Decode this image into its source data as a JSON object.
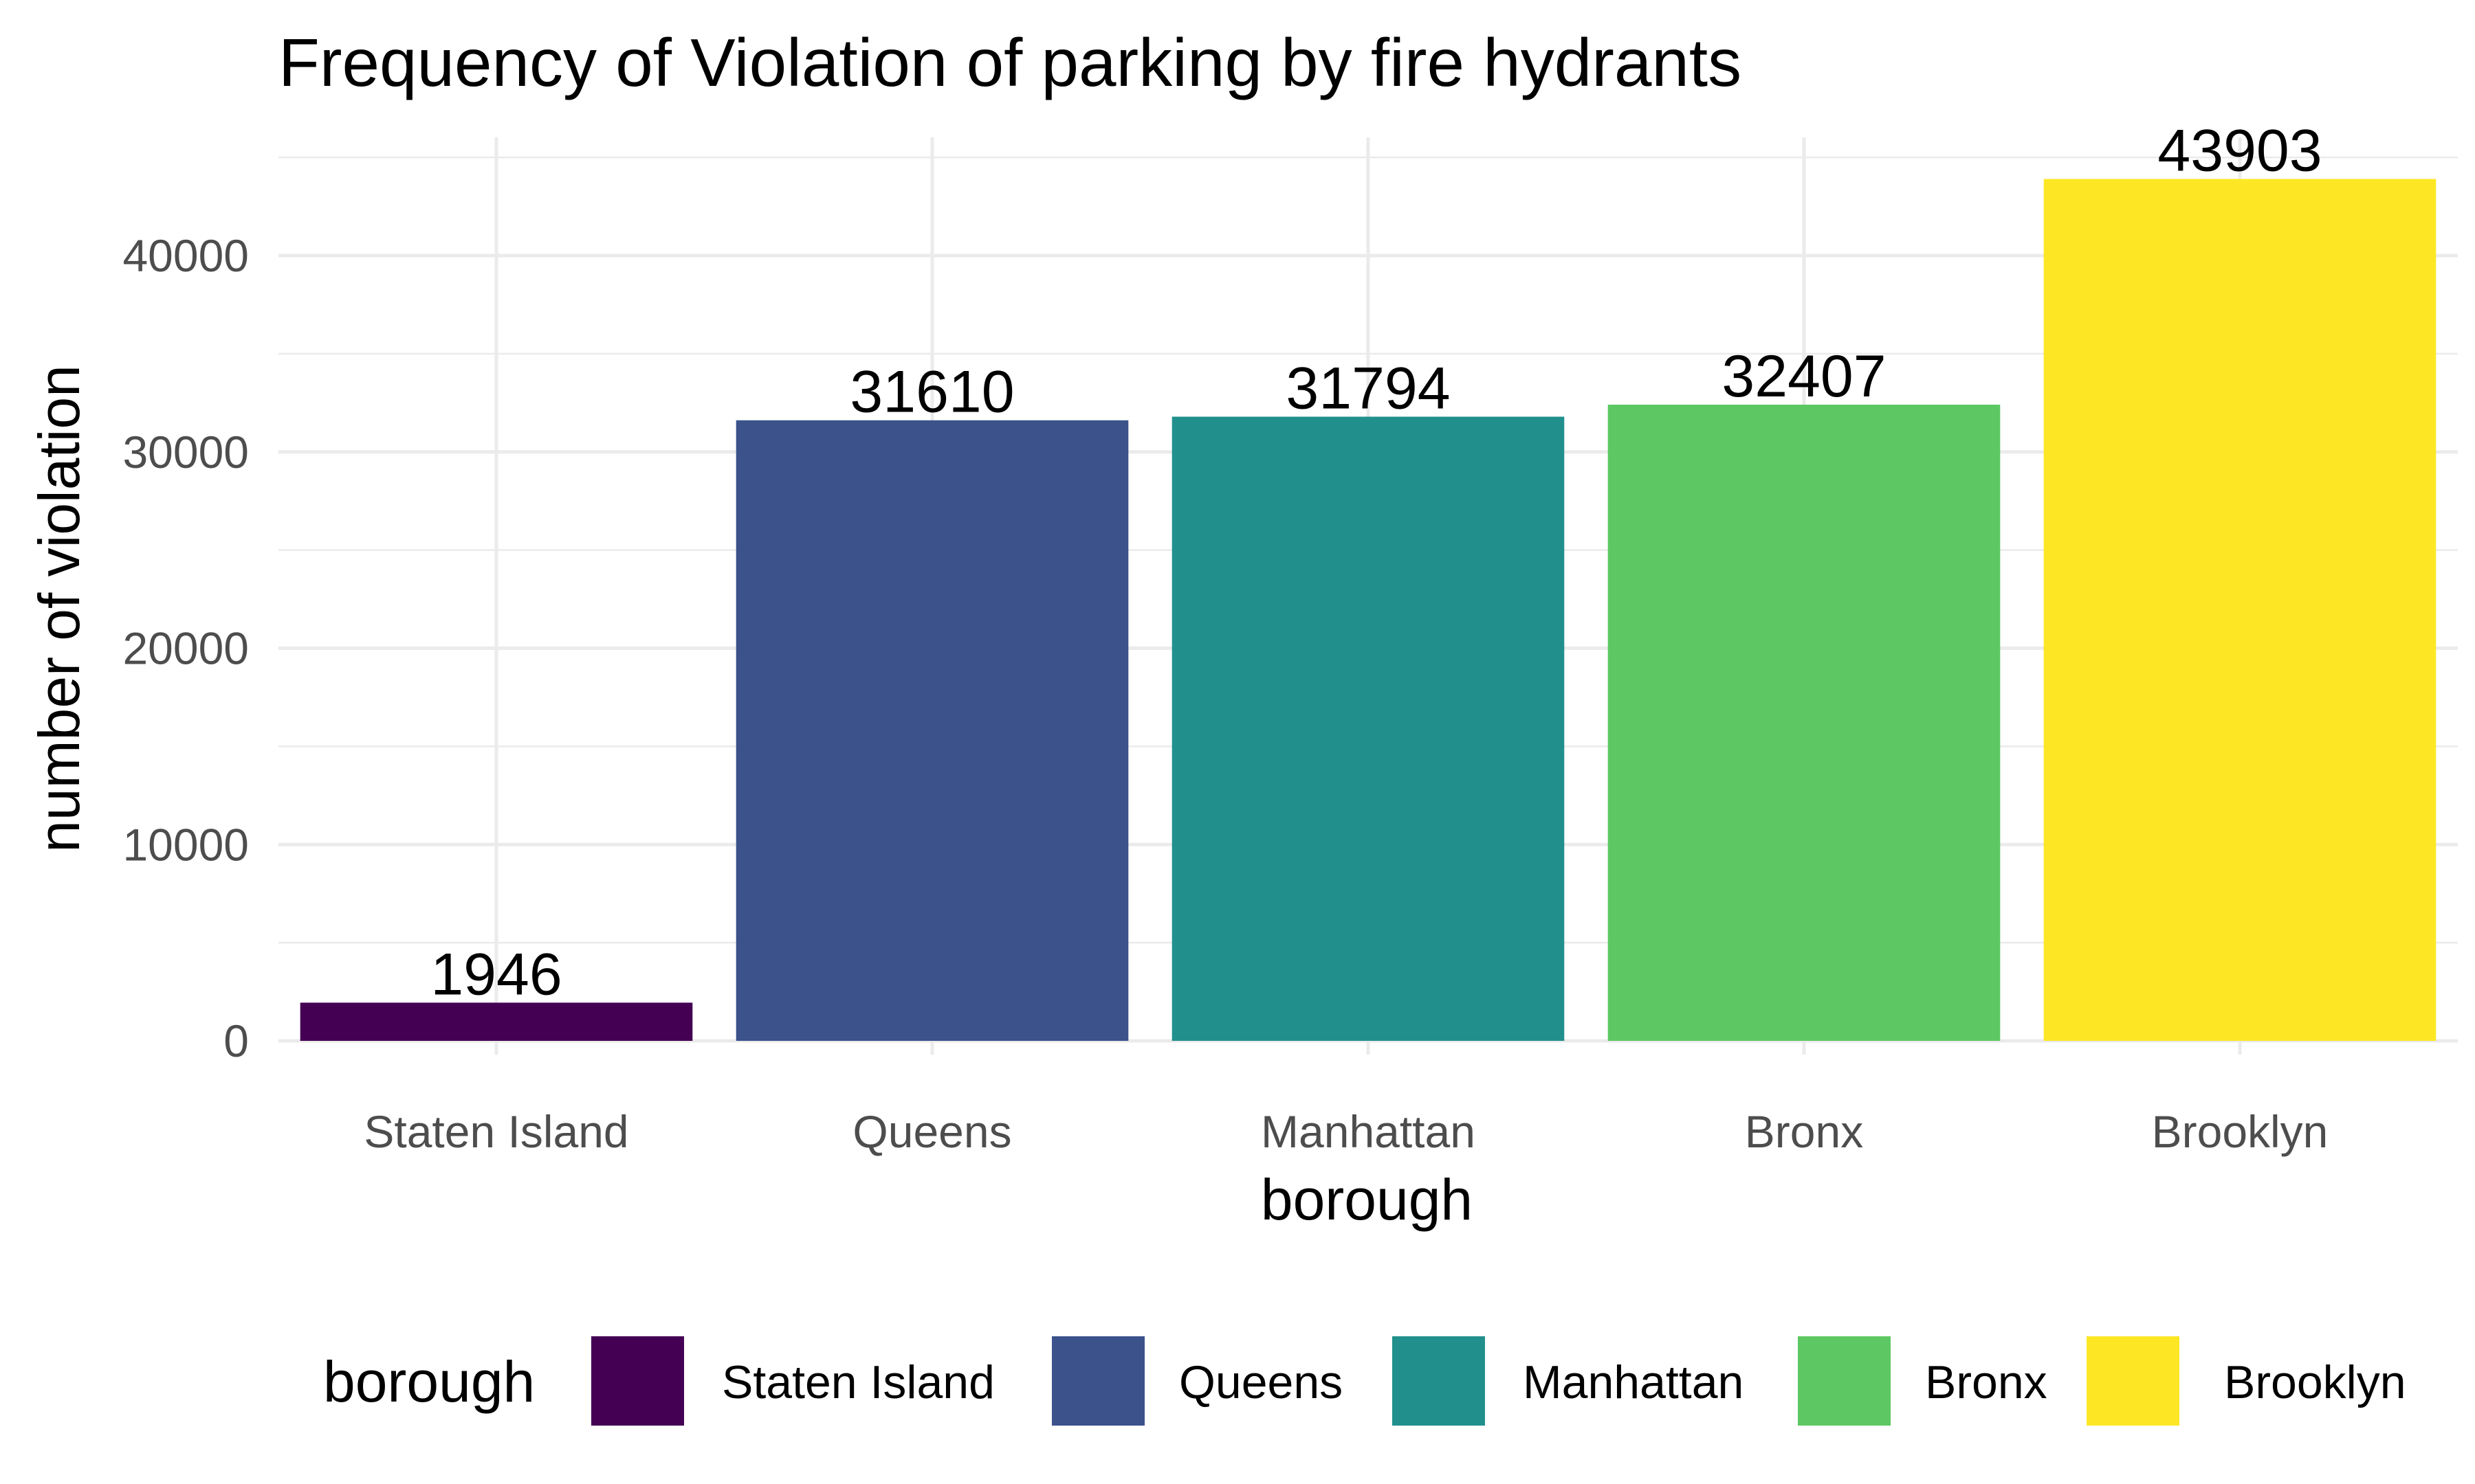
{
  "chart_data": {
    "type": "bar",
    "title": "Frequency of Violation of parking by fire hydrants",
    "xlabel": "borough",
    "ylabel": "number of violation",
    "categories": [
      "Staten Island",
      "Queens",
      "Manhattan",
      "Bronx",
      "Brooklyn"
    ],
    "values": [
      1946,
      31610,
      31794,
      32407,
      43903
    ],
    "data_labels": [
      "1946",
      "31610",
      "31794",
      "32407",
      "43903"
    ],
    "colors": [
      "#440154",
      "#3B528B",
      "#21908C",
      "#5DC863",
      "#FDE725"
    ],
    "ylim": [
      0,
      45000
    ],
    "y_ticks": [
      0,
      10000,
      20000,
      30000,
      40000
    ],
    "y_tick_labels": [
      "0",
      "10000",
      "20000",
      "30000",
      "40000"
    ],
    "grid": true,
    "legend": {
      "title": "borough",
      "position": "bottom",
      "entries": [
        "Staten Island",
        "Queens",
        "Manhattan",
        "Bronx",
        "Brooklyn"
      ]
    }
  }
}
